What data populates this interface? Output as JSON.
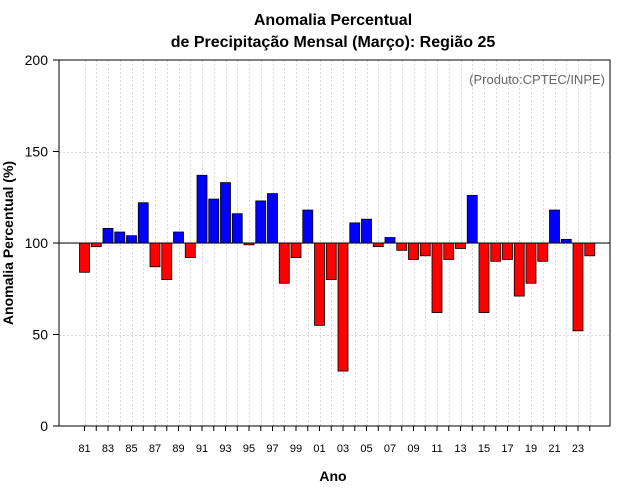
{
  "chart_data": {
    "type": "bar",
    "title_line1": "Anomalia Percentual",
    "title_line2": "de Precipitação Mensal (Março): Região 25",
    "xlabel": "Ano",
    "ylabel": "Anomalia Percentual (%)",
    "credit": "(Produto:CPTEC/INPE)",
    "baseline": 100,
    "ylim": [
      0,
      200
    ],
    "yticks": [
      0,
      50,
      100,
      150,
      200
    ],
    "grid": true,
    "colors": {
      "above": "#0000ff",
      "below": "#ff0000",
      "outline": "#000000",
      "grid": "#d9d9d9"
    },
    "categories": [
      "1981",
      "1982",
      "1983",
      "1984",
      "1985",
      "1986",
      "1987",
      "1988",
      "1989",
      "1990",
      "1991",
      "1992",
      "1993",
      "1994",
      "1995",
      "1996",
      "1997",
      "1998",
      "1999",
      "2000",
      "2001",
      "2002",
      "2003",
      "2004",
      "2005",
      "2006",
      "2007",
      "2008",
      "2009",
      "2010",
      "2011",
      "2012",
      "2013",
      "2014",
      "2015",
      "2016",
      "2017",
      "2018",
      "2019",
      "2020",
      "2021",
      "2022",
      "2023",
      "2024"
    ],
    "xtick_labels": [
      "81",
      "83",
      "85",
      "87",
      "89",
      "91",
      "93",
      "95",
      "97",
      "99",
      "01",
      "03",
      "05",
      "07",
      "09",
      "11",
      "13",
      "15",
      "17",
      "19",
      "21",
      "23"
    ],
    "values": [
      84,
      98,
      108,
      106,
      104,
      122,
      87,
      80,
      106,
      92,
      137,
      124,
      133,
      116,
      99,
      123,
      127,
      78,
      92,
      118,
      55,
      80,
      30,
      111,
      113,
      98,
      103,
      96,
      91,
      93,
      62,
      91,
      97,
      126,
      62,
      90,
      91,
      71,
      78,
      90,
      118,
      102,
      52,
      93
    ]
  }
}
